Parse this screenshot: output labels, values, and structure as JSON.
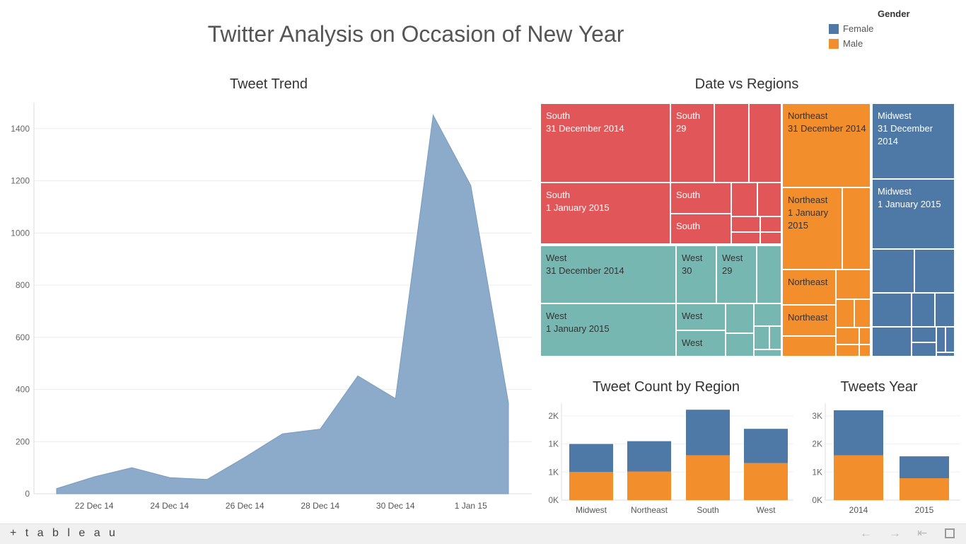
{
  "dashboard": {
    "title": "Twitter Analysis on Occasion of New Year",
    "legend": {
      "title": "Gender",
      "items": [
        {
          "label": "Female",
          "color": "#4e79a7"
        },
        {
          "label": "Male",
          "color": "#f28e2b"
        }
      ]
    },
    "footer": {
      "logo_text": "+ t a b l e a u"
    }
  },
  "chart_data": [
    {
      "type": "area",
      "title": "Tweet Trend",
      "x": [
        "21 Dec 14",
        "22 Dec 14",
        "23 Dec 14",
        "24 Dec 14",
        "25 Dec 14",
        "26 Dec 14",
        "27 Dec 14",
        "28 Dec 14",
        "29 Dec 14",
        "30 Dec 14",
        "31 Dec 14",
        "1 Jan 15",
        "2 Jan 15"
      ],
      "values": [
        20,
        65,
        100,
        62,
        55,
        140,
        230,
        248,
        452,
        365,
        1452,
        1182,
        348
      ],
      "x_tick_labels": [
        "22 Dec 14",
        "24 Dec 14",
        "26 Dec 14",
        "28 Dec 14",
        "30 Dec 14",
        "1 Jan 15"
      ],
      "y_ticks": [
        0,
        200,
        400,
        600,
        800,
        1000,
        1200,
        1400
      ],
      "ylim": [
        0,
        1500
      ],
      "color": "#8caac9",
      "grid": true
    },
    {
      "type": "treemap",
      "title": "Date vs Regions",
      "labels": [
        "South\n31 December 2014",
        "South\n29",
        "South\n1 January 2015",
        "South",
        "South",
        "West\n31 December 2014",
        "West\n30",
        "West\n29",
        "West\n1 January 2015",
        "West",
        "West",
        "Northeast\n31 December 2014",
        "Northeast\n1 January\n2015",
        "Northeast",
        "Northeast",
        "Midwest\n31 December\n2014",
        "Midwest\n1 January 2015"
      ],
      "colors": {
        "South": "#e15759",
        "West": "#76b7b2",
        "Northeast": "#f28e2b",
        "Midwest": "#4e79a7"
      }
    },
    {
      "type": "bar",
      "title": "Tweet Count by Region",
      "categories": [
        "Midwest",
        "Northeast",
        "South",
        "West"
      ],
      "series": [
        {
          "name": "Male",
          "values": [
            500,
            510,
            800,
            660
          ]
        },
        {
          "name": "Female",
          "values": [
            500,
            540,
            810,
            610
          ]
        }
      ],
      "y_ticks": [
        0,
        500,
        1000,
        1500
      ],
      "y_tick_labels": [
        "0K",
        "1K",
        "1K",
        "2K"
      ],
      "ylim": [
        0,
        1650
      ]
    },
    {
      "type": "bar",
      "title": "Tweets Year",
      "categories": [
        "2014",
        "2015"
      ],
      "series": [
        {
          "name": "Male",
          "values": [
            1600,
            780
          ]
        },
        {
          "name": "Female",
          "values": [
            1600,
            780
          ]
        }
      ],
      "y_ticks": [
        0,
        1000,
        2000,
        3000
      ],
      "y_tick_labels": [
        "0K",
        "1K",
        "2K",
        "3K"
      ],
      "ylim": [
        0,
        3300
      ]
    }
  ]
}
